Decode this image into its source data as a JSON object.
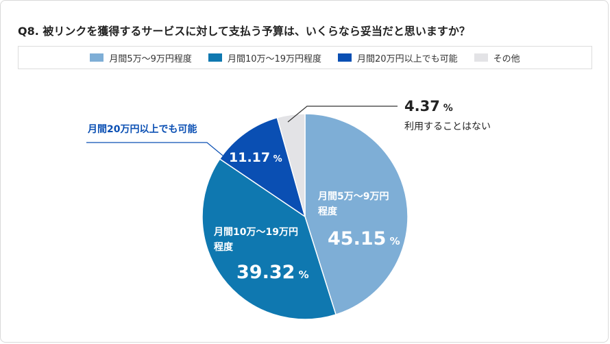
{
  "chart_data": {
    "type": "pie",
    "title": "Q8. 被リンクを獲得するサービスに対して支払う予算は、いくらなら妥当だと思いますか？",
    "unit": "%",
    "slices": [
      {
        "label": "月間5万〜9万円程度",
        "value": 45.15,
        "color": "#7eaed6",
        "label_lines": [
          "月間5万〜9万円",
          "程度"
        ],
        "value_text": "45.15"
      },
      {
        "label": "月間10万〜19万円程度",
        "value": 39.32,
        "color": "#0f78b0",
        "label_lines": [
          "月間10万〜19万円",
          "程度"
        ],
        "value_text": "39.32"
      },
      {
        "label": "月間20万円以上でも可能",
        "value": 11.17,
        "color": "#0a4fb3",
        "label_lines": [],
        "value_text": "11.17",
        "callout": "月間20万円以上でも可能"
      },
      {
        "label": "その他",
        "value": 4.37,
        "color": "#e3e3e6",
        "label_lines": [],
        "value_text": "4.37",
        "callout": "利用することはない"
      }
    ]
  }
}
